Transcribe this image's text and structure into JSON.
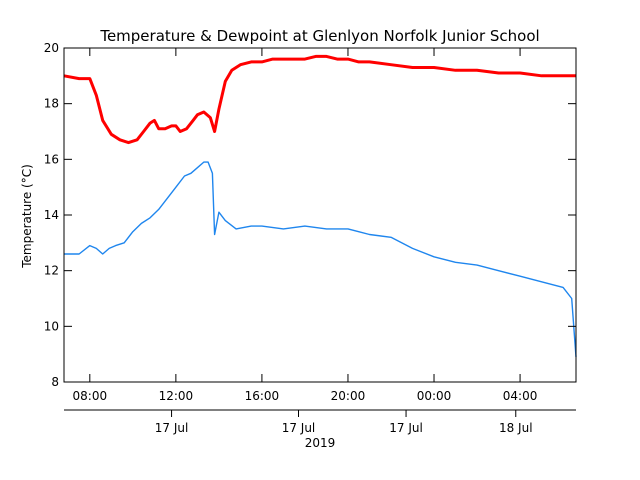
{
  "chart_data": {
    "type": "line",
    "title": "Temperature & Dewpoint at Glenlyon Norfolk Junior School",
    "ylabel": "Temperature (°C)",
    "year_label": "2019",
    "ylim": [
      8,
      20
    ],
    "y_ticks": [
      8,
      10,
      12,
      14,
      16,
      18,
      20
    ],
    "x_range_hours": [
      6.8,
      30.6
    ],
    "time_ticks": [
      {
        "hour": 8,
        "label": "08:00"
      },
      {
        "hour": 12,
        "label": "12:00"
      },
      {
        "hour": 16,
        "label": "16:00"
      },
      {
        "hour": 20,
        "label": "20:00"
      },
      {
        "hour": 24,
        "label": "00:00"
      },
      {
        "hour": 28,
        "label": "04:00"
      }
    ],
    "date_ticks": [
      {
        "hour": 11.8,
        "label": "17 Jul"
      },
      {
        "hour": 17.7,
        "label": "17 Jul"
      },
      {
        "hour": 22.7,
        "label": "17 Jul"
      },
      {
        "hour": 27.8,
        "label": "18 Jul"
      }
    ],
    "grid": false,
    "legend": "none",
    "series": [
      {
        "color": "#ff0000",
        "x": [
          6.8,
          7.5,
          8.0,
          8.3,
          8.6,
          9.0,
          9.4,
          9.8,
          10.2,
          10.5,
          10.8,
          11.0,
          11.2,
          11.5,
          11.8,
          12.0,
          12.2,
          12.5,
          12.8,
          13.0,
          13.3,
          13.6,
          13.8,
          14.0,
          14.3,
          14.6,
          15.0,
          15.5,
          16.0,
          16.5,
          17.0,
          17.5,
          18.0,
          18.5,
          19.0,
          19.5,
          20.0,
          20.5,
          21.0,
          22.0,
          23.0,
          24.0,
          25.0,
          26.0,
          27.0,
          28.0,
          29.0,
          30.0,
          30.6
        ],
        "y": [
          19.0,
          18.9,
          18.9,
          18.3,
          17.4,
          16.9,
          16.7,
          16.6,
          16.7,
          17.0,
          17.3,
          17.4,
          17.1,
          17.1,
          17.2,
          17.2,
          17.0,
          17.1,
          17.4,
          17.6,
          17.7,
          17.5,
          17.0,
          17.8,
          18.8,
          19.2,
          19.4,
          19.5,
          19.5,
          19.6,
          19.6,
          19.6,
          19.6,
          19.7,
          19.7,
          19.6,
          19.6,
          19.5,
          19.5,
          19.4,
          19.3,
          19.3,
          19.2,
          19.2,
          19.1,
          19.1,
          19.0,
          19.0,
          19.0
        ]
      },
      {
        "color": "#1f86ee",
        "x": [
          6.8,
          7.5,
          8.0,
          8.3,
          8.6,
          8.9,
          9.2,
          9.6,
          10.0,
          10.4,
          10.8,
          11.2,
          11.6,
          12.0,
          12.4,
          12.7,
          13.0,
          13.3,
          13.5,
          13.7,
          13.8,
          14.0,
          14.3,
          14.8,
          15.5,
          16.0,
          17.0,
          18.0,
          19.0,
          20.0,
          20.5,
          21.0,
          22.0,
          23.0,
          24.0,
          25.0,
          26.0,
          27.0,
          28.0,
          29.0,
          30.0,
          30.4,
          30.6
        ],
        "y": [
          12.6,
          12.6,
          12.9,
          12.8,
          12.6,
          12.8,
          12.9,
          13.0,
          13.4,
          13.7,
          13.9,
          14.2,
          14.6,
          15.0,
          15.4,
          15.5,
          15.7,
          15.9,
          15.9,
          15.5,
          13.3,
          14.1,
          13.8,
          13.5,
          13.6,
          13.6,
          13.5,
          13.6,
          13.5,
          13.5,
          13.4,
          13.3,
          13.2,
          12.8,
          12.5,
          12.3,
          12.2,
          12.0,
          11.8,
          11.6,
          11.4,
          11.0,
          8.9
        ]
      }
    ]
  }
}
